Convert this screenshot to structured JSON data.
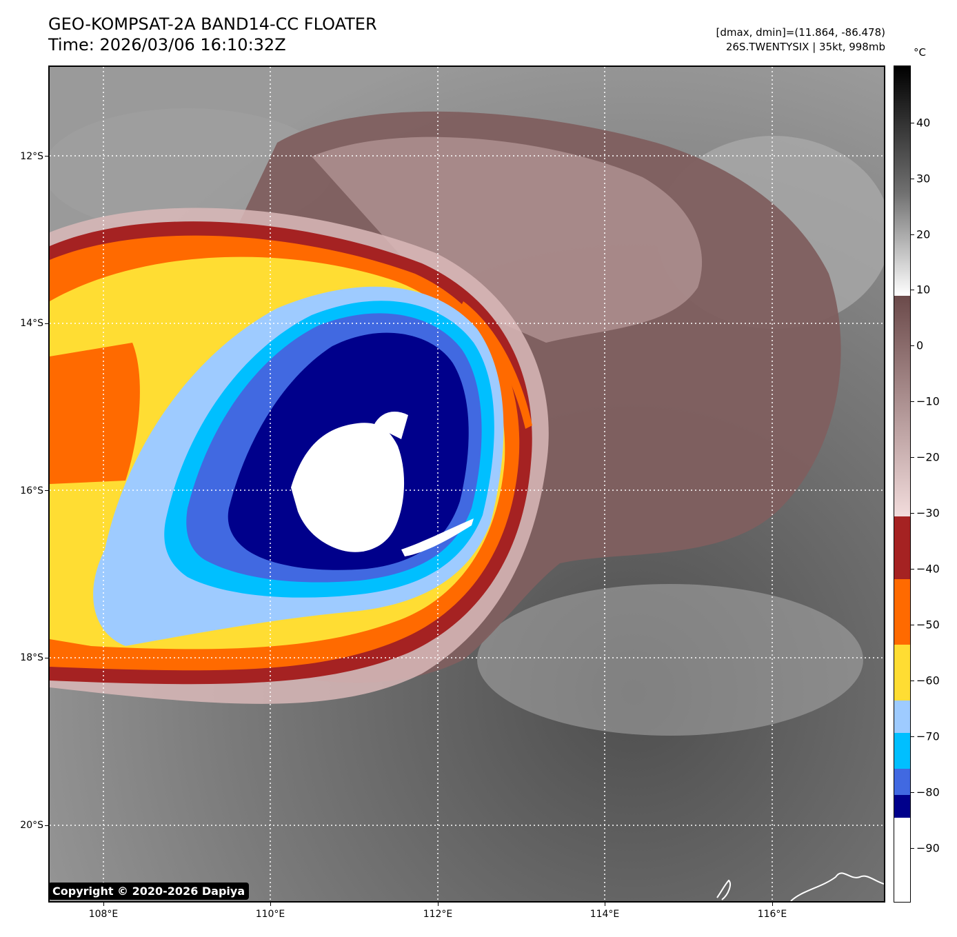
{
  "header": {
    "title_line1": "GEO-KOMPSAT-2A BAND14-CC FLOATER",
    "title_line2": "Time: 2026/03/06 16:10:32Z",
    "range_text": "[dmax, dmin]=(11.864, -86.478)",
    "storm_text": "26S.TWENTYSIX | 35kt, 998mb"
  },
  "axes": {
    "lat_labels": [
      "12°S",
      "14°S",
      "16°S",
      "18°S",
      "20°S"
    ],
    "lon_labels": [
      "108°E",
      "110°E",
      "112°E",
      "114°E",
      "116°E"
    ]
  },
  "colorbar": {
    "unit": "°C",
    "labels": [
      "40",
      "30",
      "20",
      "10",
      "0",
      "−10",
      "−20",
      "−30",
      "−40",
      "−50",
      "−60",
      "−70",
      "−80",
      "−90"
    ],
    "colors": {
      "black": "#000000",
      "white": "#ffffff",
      "brown_dark": "#6b4a4a",
      "pink_light": "#f2dcdc",
      "dark_red": "#a52222",
      "orange": "#ff6a00",
      "yellow": "#ffdd33",
      "light_blue": "#9ecbff",
      "cyan": "#00bfff",
      "royal_blue": "#4169e1",
      "navy": "#00008b"
    }
  },
  "copyright": "Copyright © 2020-2026 Dapiya"
}
